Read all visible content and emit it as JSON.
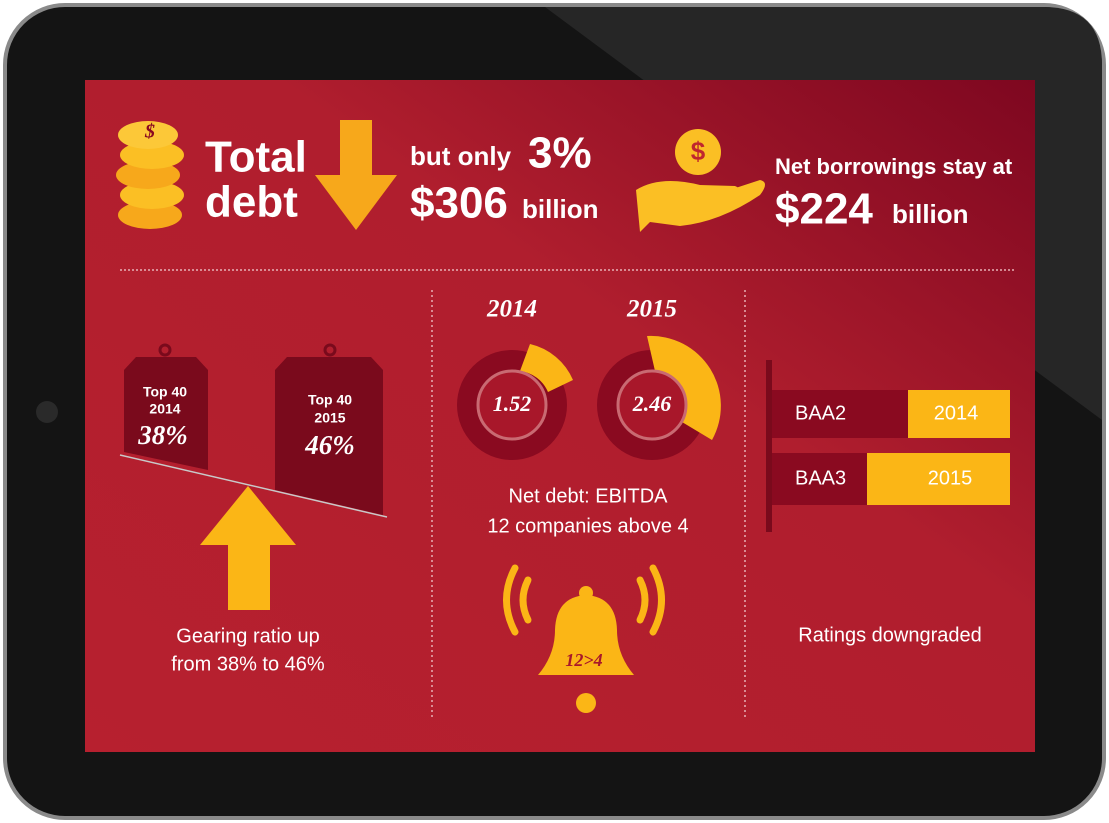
{
  "header": {
    "coin_symbol": "$",
    "total": "Total",
    "debt": "debt",
    "but_only": "but only",
    "drop_pct": "3%",
    "amount": "$306",
    "amount_unit": "billion",
    "hand_symbol": "$",
    "net_borrowings": "Net borrowings stay at",
    "net_amount": "$224",
    "net_unit": "billion"
  },
  "gearing": {
    "tags": [
      {
        "group": "Top 40",
        "year": "2014",
        "value": "38%"
      },
      {
        "group": "Top 40",
        "year": "2015",
        "value": "46%"
      }
    ],
    "caption": [
      "Gearing ratio up",
      "from 38% to 46%"
    ]
  },
  "ebitda": {
    "donuts": [
      {
        "year": "2014",
        "value": "1.52"
      },
      {
        "year": "2015",
        "value": "2.46"
      }
    ],
    "caption": [
      "Net debt: EBITDA",
      "12 companies above 4"
    ],
    "bell_label": "12>4"
  },
  "ratings": {
    "rows": [
      {
        "grade": "BAA2",
        "year": "2014"
      },
      {
        "grade": "BAA3",
        "year": "2015"
      }
    ],
    "caption": "Ratings downgraded"
  }
}
